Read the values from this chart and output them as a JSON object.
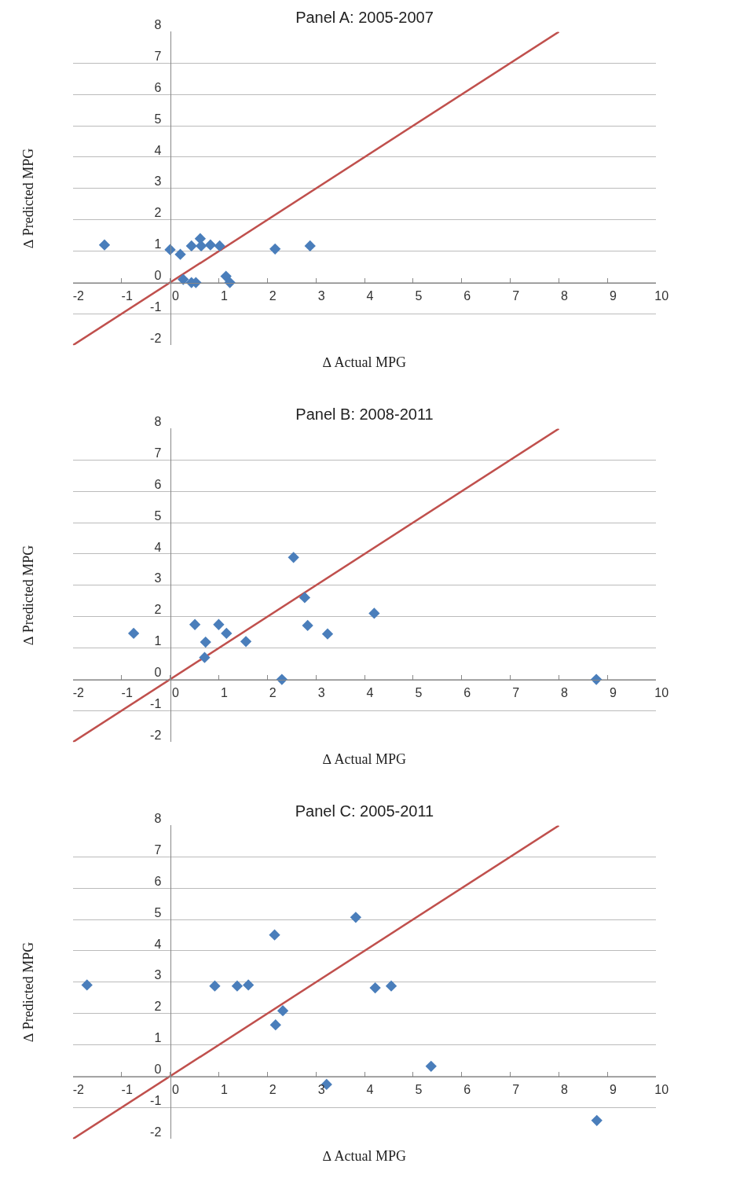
{
  "chart_data": [
    {
      "type": "scatter",
      "title": "Panel A: 2005-2007",
      "xlabel": "∆ Actual MPG",
      "ylabel": "∆ Predicted MPG",
      "xlim": [
        -2,
        10
      ],
      "ylim": [
        -2,
        8
      ],
      "xticks": [
        -2,
        -1,
        0,
        1,
        2,
        3,
        4,
        5,
        6,
        7,
        8,
        9,
        10
      ],
      "yticks": [
        -2,
        -1,
        0,
        1,
        2,
        3,
        4,
        5,
        6,
        7,
        8
      ],
      "grid": "y",
      "series": [
        {
          "marker": "diamond",
          "color": "#4a7ebb",
          "x": [
            -1.35,
            0,
            0.21,
            0.27,
            0.44,
            0.44,
            0.53,
            0.62,
            0.64,
            0.83,
            1.02,
            1.15,
            1.23,
            2.16,
            2.88
          ],
          "values": [
            1.2,
            1.05,
            0.9,
            0.1,
            1.17,
            0,
            0,
            1.4,
            1.17,
            1.2,
            1.17,
            0.2,
            0,
            1.07,
            1.17
          ]
        },
        {
          "type": "line",
          "marker": "none",
          "color": "#c0504d",
          "x": [
            -2,
            8
          ],
          "values": [
            -2,
            8
          ]
        }
      ]
    },
    {
      "type": "scatter",
      "title": "Panel B: 2008-2011",
      "xlabel": "∆ Actual MPG",
      "ylabel": "∆ Predicted MPG",
      "xlim": [
        -2,
        10
      ],
      "ylim": [
        -2,
        8
      ],
      "xticks": [
        -2,
        -1,
        0,
        1,
        2,
        3,
        4,
        5,
        6,
        7,
        8,
        9,
        10
      ],
      "yticks": [
        -2,
        -1,
        0,
        1,
        2,
        3,
        4,
        5,
        6,
        7,
        8
      ],
      "grid": "y",
      "series": [
        {
          "marker": "diamond",
          "color": "#4a7ebb",
          "x": [
            -0.75,
            0.51,
            0.73,
            0.71,
            1.0,
            1.16,
            1.56,
            2.3,
            2.54,
            2.77,
            2.83,
            3.24,
            4.2,
            8.77
          ],
          "values": [
            1.47,
            1.75,
            1.19,
            0.7,
            1.75,
            1.47,
            1.21,
            0,
            3.89,
            2.61,
            1.72,
            1.45,
            2.11,
            0
          ]
        },
        {
          "type": "line",
          "marker": "none",
          "color": "#c0504d",
          "x": [
            -2,
            8
          ],
          "values": [
            -2,
            8
          ]
        }
      ]
    },
    {
      "type": "scatter",
      "title": "Panel C: 2005-2011",
      "xlabel": "∆ Actual MPG",
      "ylabel": "∆ Predicted MPG",
      "xlim": [
        -2,
        10
      ],
      "ylim": [
        -2,
        8
      ],
      "xticks": [
        -2,
        -1,
        0,
        1,
        2,
        3,
        4,
        5,
        6,
        7,
        8,
        9,
        10
      ],
      "yticks": [
        -2,
        -1,
        0,
        1,
        2,
        3,
        4,
        5,
        6,
        7,
        8
      ],
      "grid": "y",
      "series": [
        {
          "marker": "diamond",
          "color": "#4a7ebb",
          "x": [
            -1.71,
            0.92,
            1.38,
            1.61,
            2.15,
            2.17,
            2.32,
            3.22,
            3.82,
            4.22,
            4.55,
            5.37,
            8.78
          ],
          "values": [
            2.91,
            2.88,
            2.88,
            2.91,
            4.51,
            1.64,
            2.09,
            -0.26,
            5.07,
            2.82,
            2.88,
            0.32,
            -1.41
          ]
        },
        {
          "type": "line",
          "marker": "none",
          "color": "#c0504d",
          "x": [
            -2,
            8
          ],
          "values": [
            -2,
            8
          ]
        }
      ]
    }
  ]
}
